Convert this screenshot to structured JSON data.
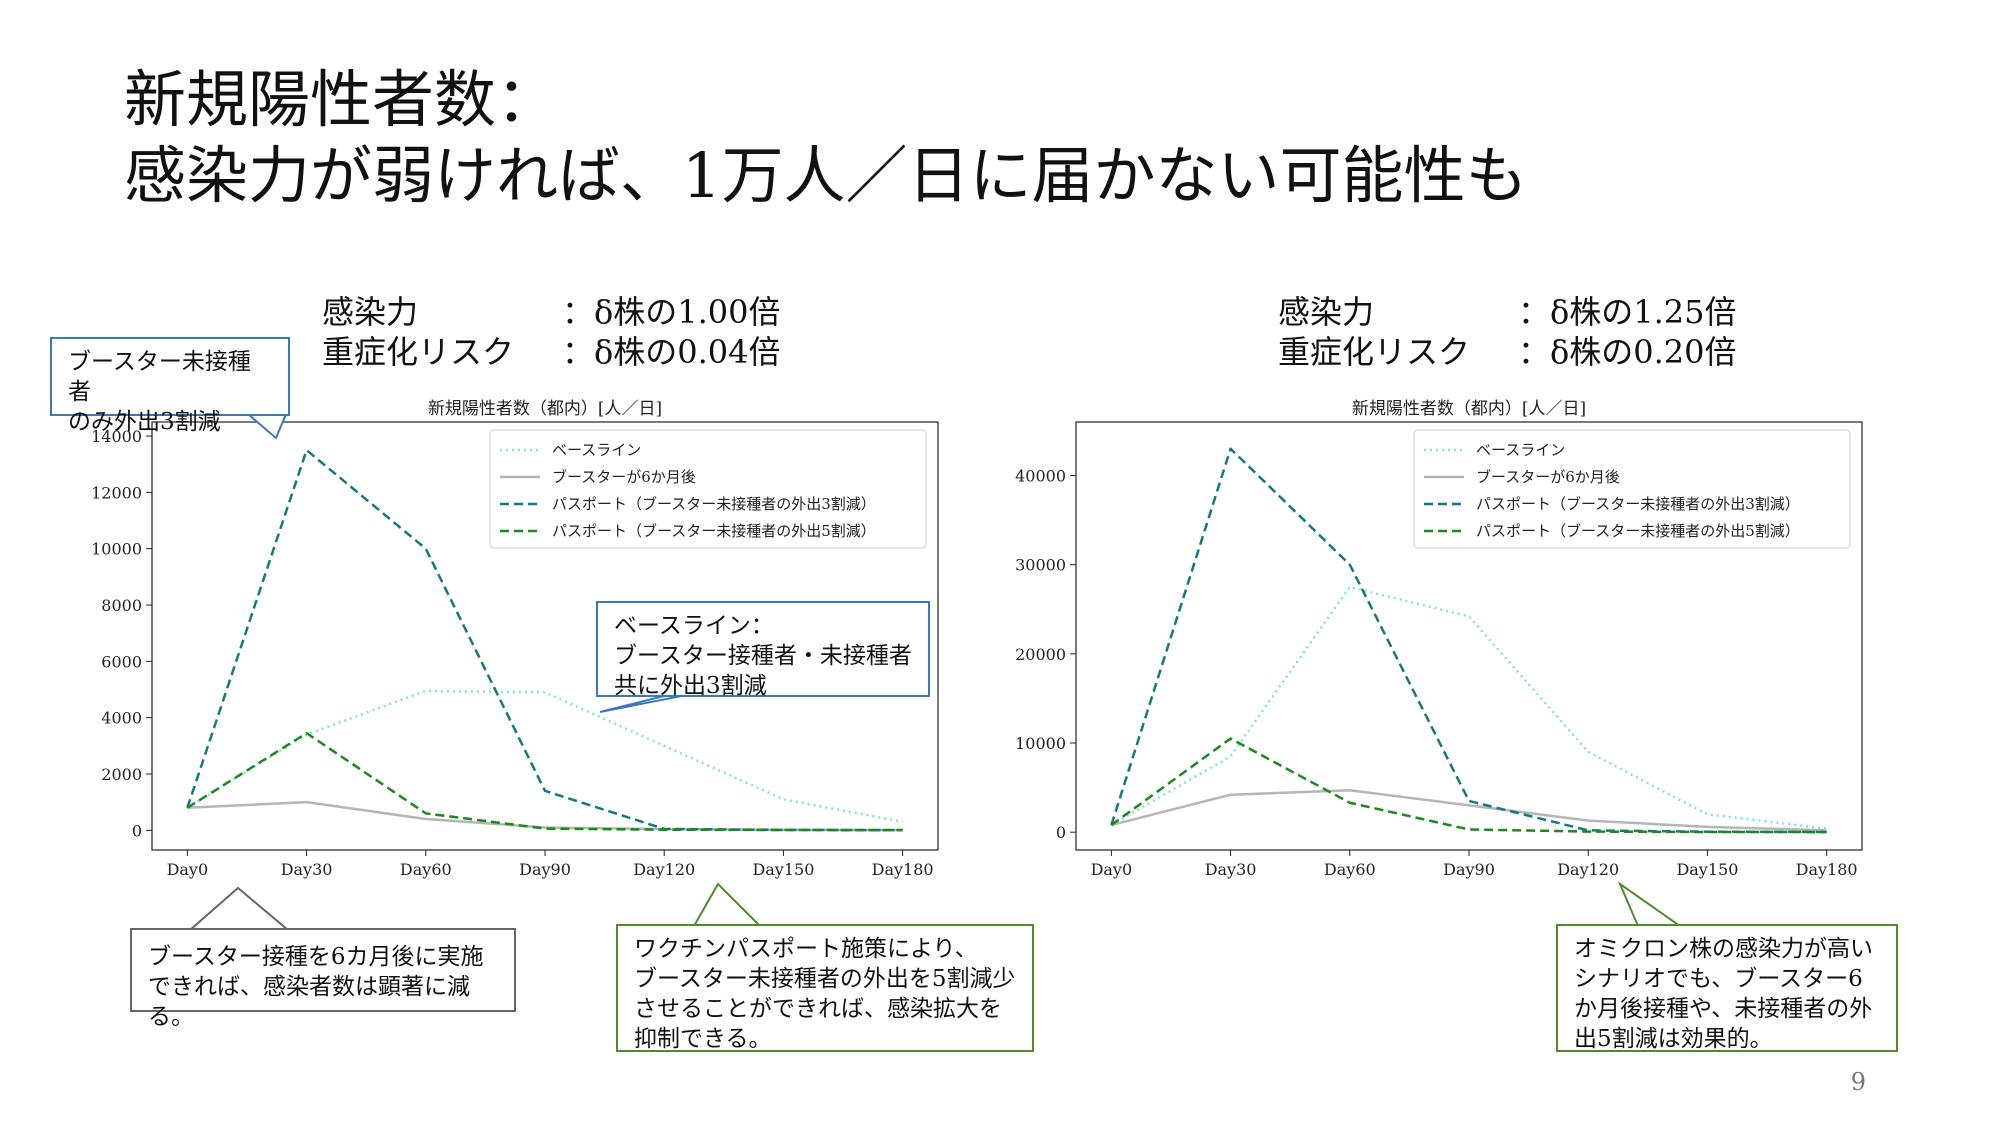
{
  "title": {
    "line1": "新規陽性者数：",
    "line2": "感染力が弱ければ、1万人／日に届かない可能性も"
  },
  "left_params": {
    "row1_key": "感染力",
    "row1_val": "：δ株の1.00倍",
    "row2_key": "重症化リスク",
    "row2_val": "：δ株の0.04倍"
  },
  "right_params": {
    "row1_key": "感染力",
    "row1_val": "：δ株の1.25倍",
    "row2_key": "重症化リスク",
    "row2_val": "：δ株の0.20倍"
  },
  "legend": [
    "ベースライン",
    "ブースターが6か月後",
    "パスポート（ブースター未接種者の外出3割減）",
    "パスポート（ブースター未接種者の外出5割減）"
  ],
  "colors": {
    "baseline": "#7fe6c8",
    "booster": "#b5b5b5",
    "passport3": "#127a7a",
    "passport5": "#1a8a1a"
  },
  "chart_data": [
    {
      "type": "line",
      "title": "新規陽性者数（都内）[人／日]",
      "x": [
        "Day0",
        "Day30",
        "Day60",
        "Day90",
        "Day120",
        "Day150",
        "Day180"
      ],
      "ylim": [
        -700,
        14500
      ],
      "yticks": [
        0,
        2000,
        4000,
        6000,
        8000,
        10000,
        12000,
        14000
      ],
      "legend_position": "top-right",
      "series": [
        {
          "name": "ベースライン",
          "values": [
            800,
            3400,
            4950,
            4900,
            3000,
            1100,
            300
          ]
        },
        {
          "name": "ブースターが6か月後",
          "values": [
            800,
            1000,
            400,
            100,
            40,
            20,
            10
          ]
        },
        {
          "name": "パスポート（ブースター未接種者の外出3割減）",
          "values": [
            800,
            13500,
            10000,
            1400,
            50,
            10,
            5
          ]
        },
        {
          "name": "パスポート（ブースター未接種者の外出5割減）",
          "values": [
            800,
            3450,
            600,
            60,
            20,
            10,
            5
          ]
        }
      ]
    },
    {
      "type": "line",
      "title": "新規陽性者数（都内）[人／日]",
      "x": [
        "Day0",
        "Day30",
        "Day60",
        "Day90",
        "Day120",
        "Day150",
        "Day180"
      ],
      "ylim": [
        -2000,
        46000
      ],
      "yticks": [
        0,
        10000,
        20000,
        30000,
        40000
      ],
      "legend_position": "top-right",
      "series": [
        {
          "name": "ベースライン",
          "values": [
            800,
            8500,
            27500,
            24200,
            9000,
            2000,
            400
          ]
        },
        {
          "name": "ブースターが6か月後",
          "values": [
            800,
            4200,
            4700,
            3000,
            1300,
            600,
            200
          ]
        },
        {
          "name": "パスポート（ブースター未接種者の外出3割減）",
          "values": [
            800,
            43000,
            30000,
            3500,
            200,
            50,
            20
          ]
        },
        {
          "name": "パスポート（ブースター未接種者の外出5割減）",
          "values": [
            800,
            10500,
            3300,
            300,
            60,
            20,
            10
          ]
        }
      ]
    }
  ],
  "callouts": {
    "c1": "ブースター未接種者\nのみ外出3割減",
    "c2": "ベースライン：\nブースター接種者・未接種者\n共に外出3割減",
    "c3": "ブースター接種を6カ月後に実施\nできれば、感染者数は顕著に減る。",
    "c4": "ワクチンパスポート施策により、\nブースター未接種者の外出を5割減少\nさせることができれば、感染拡大を\n抑制できる。",
    "c5": "オミクロン株の感染力が高い\nシナリオでも、ブースター6\nか月後接種や、未接種者の外\n出5割減は効果的。"
  },
  "page_number": "9"
}
